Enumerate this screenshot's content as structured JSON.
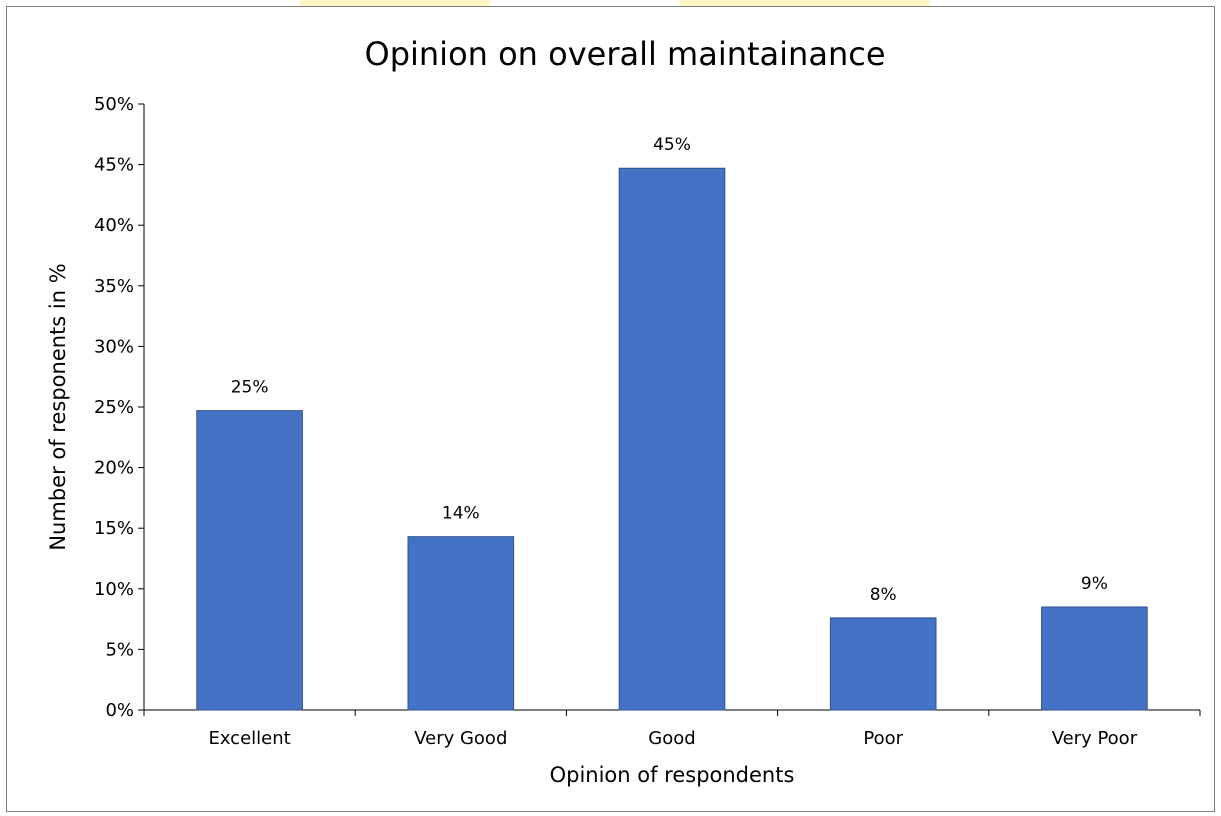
{
  "chart_data": {
    "type": "bar",
    "title": "Opinion on overall maintainance",
    "xlabel": "Opinion of respondents",
    "ylabel": "Number of responents in %",
    "categories": [
      "Excellent",
      "Very Good",
      "Good",
      "Poor",
      "Very Poor"
    ],
    "values": [
      24.7,
      14.3,
      44.7,
      7.6,
      8.5
    ],
    "data_labels": [
      "25%",
      "14%",
      "45%",
      "8%",
      "9%"
    ],
    "ylim": [
      0,
      50
    ],
    "yticks": [
      0,
      5,
      10,
      15,
      20,
      25,
      30,
      35,
      40,
      45,
      50
    ],
    "ytick_labels": [
      "0%",
      "5%",
      "10%",
      "15%",
      "20%",
      "25%",
      "30%",
      "35%",
      "40%",
      "45%",
      "50%"
    ],
    "grid": false,
    "legend": "none",
    "bar_color": "#4472C4",
    "bar_edge_color": "#2F528F"
  }
}
